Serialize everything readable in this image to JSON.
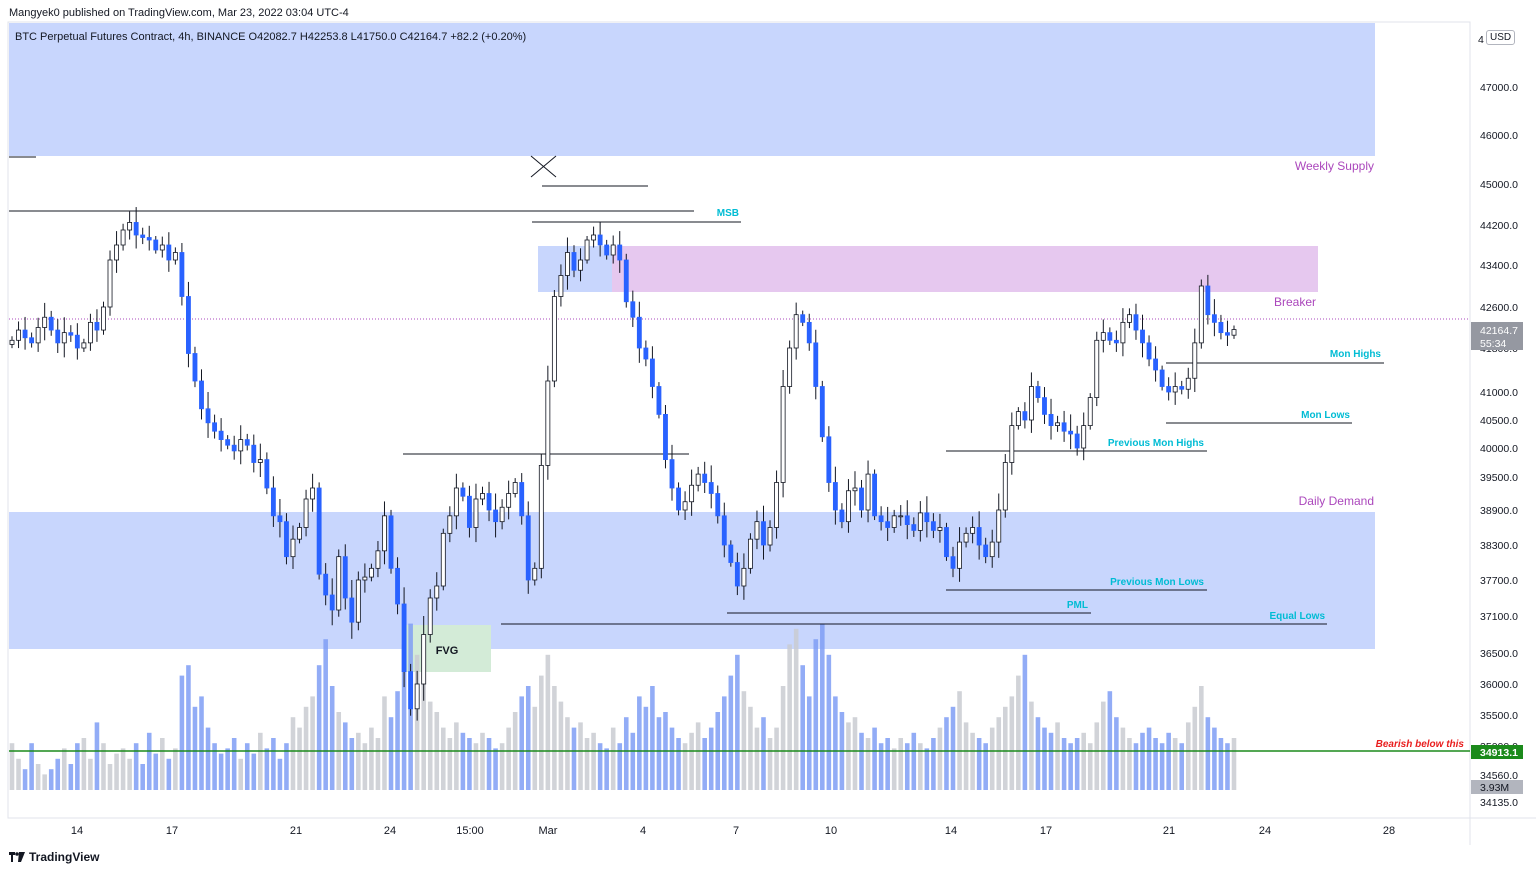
{
  "header": {
    "published": "Mangyek0 published on TradingView.com, Mar 23, 2022 03:04 UTC-4",
    "symbol_info": "BTC Perpetual Futures Contract, 4h, BINANCE  O42082.7  H42253.8  L41750.0  C42164.7  +82.2 (+0.20%)",
    "currency": "USD"
  },
  "footer": {
    "brand": "TradingView"
  },
  "colors": {
    "bull_body": "#ffffff",
    "bear_body": "#2962ff",
    "candle_outline": "#131722",
    "zone_blue": "#c8d6fd",
    "zone_pink": "#e6c8ef",
    "zone_green": "#d3ebd7",
    "label_cyan": "#00bcd4",
    "label_purple": "#ab47bc",
    "bearish_red": "#e91e1e",
    "green_line": "#1b8a1b",
    "volume_blue": "#7f9ef5",
    "volume_gray": "#c9cbd1"
  },
  "chart_data": {
    "type": "candlestick",
    "timeframe": "4h",
    "x_ticks": [
      "14",
      "17",
      "21",
      "24",
      "15:00",
      "Mar",
      "4",
      "7",
      "10",
      "14",
      "17",
      "21",
      "24",
      "28"
    ],
    "y_ticks": [
      47000,
      46000,
      45000,
      44200,
      43400,
      42600,
      41800,
      41000,
      40500,
      40000,
      39500,
      38900,
      38300,
      37700,
      37100,
      36500,
      36000,
      35500,
      35000,
      34560,
      34135
    ],
    "y_tick_labels": [
      "47000.0",
      "46000.0",
      "45000.0",
      "44200.0",
      "43400.0",
      "42600.0",
      "41800.0",
      "41000.0",
      "40500.0",
      "40000.0",
      "39500.0",
      "38900.0",
      "38300.0",
      "37700.0",
      "37100.0",
      "36500.0",
      "36000.0",
      "35500.0",
      "35000.0",
      "34560.0",
      "34135.0"
    ],
    "top_partial_label": "4",
    "price_markers": {
      "last_price": "42164.7",
      "countdown": "55:34",
      "bearish_level": "34913.1",
      "volume": "3.93M"
    },
    "ohlc": {
      "open": 42082.7,
      "high": 42253.8,
      "low": 41750.0,
      "close": 42164.7,
      "change": 82.2,
      "change_pct": 0.2
    },
    "zones": [
      {
        "name": "Weekly Supply",
        "from": 45600,
        "to": 48300
      },
      {
        "name": "Daily Demand",
        "from": 36600,
        "to": 38900
      },
      {
        "name": "Breaker",
        "from": 42900,
        "to": 43700
      },
      {
        "name": "FVG",
        "from": 36200,
        "to": 36950
      }
    ],
    "annotations": {
      "weekly_supply": "Weekly Supply",
      "daily_demand": "Daily Demand",
      "breaker": "Breaker",
      "msb": "MSB",
      "mon_highs": "Mon Highs",
      "mon_lows": "Mon Lows",
      "previous_mon_highs": "Previous Mon Highs",
      "previous_mon_lows": "Previous  Mon Lows",
      "pml": "PML",
      "equal_lows": "Equal Lows",
      "fvg": "FVG",
      "bearish": "Bearish below this"
    },
    "levels": {
      "mon_highs": 41550,
      "mon_lows": 40490,
      "previous_mon_highs": 39950,
      "previous_mon_lows": 37510,
      "pml": 37190,
      "equal_lows": 36980,
      "msb": 44100,
      "bearish": 34913.1,
      "current": 42164.7
    },
    "closes": [
      41950,
      42150,
      42000,
      41900,
      42200,
      42400,
      42150,
      41900,
      42100,
      42050,
      41800,
      41900,
      42300,
      42150,
      42600,
      43500,
      43800,
      44100,
      44250,
      44000,
      43950,
      43900,
      43700,
      43800,
      43500,
      43650,
      42800,
      41700,
      41200,
      40700,
      40450,
      40300,
      40150,
      40050,
      39950,
      40150,
      40050,
      39750,
      39800,
      39300,
      38800,
      38700,
      38100,
      38400,
      38600,
      39100,
      39300,
      37800,
      37450,
      37200,
      38100,
      37400,
      37000,
      37700,
      37750,
      37900,
      38200,
      38800,
      37900,
      37300,
      36200,
      35600,
      36000,
      36800,
      37400,
      37600,
      38500,
      38800,
      39300,
      39150,
      38600,
      39100,
      39200,
      38900,
      38700,
      38950,
      39200,
      39400,
      38800,
      37700,
      37900,
      39700,
      41200,
      42800,
      43200,
      43650,
      43300,
      43500,
      43900,
      44000,
      43800,
      43600,
      43800,
      43500,
      42700,
      42400,
      41800,
      41600,
      41100,
      40600,
      39800,
      39300,
      38900,
      39050,
      39350,
      39550,
      39400,
      39200,
      38800,
      38300,
      38000,
      37600,
      37900,
      38400,
      38700,
      38300,
      38600,
      39400,
      41100,
      41800,
      42450,
      42300,
      41900,
      41100,
      40200,
      39400,
      38900,
      38700,
      39250,
      39300,
      38900,
      39550,
      38800,
      38700,
      38600,
      38800,
      38800,
      38650,
      38550,
      38850,
      38700,
      38550,
      38600,
      38100,
      37900,
      38350,
      38500,
      38600,
      38300,
      38100,
      38350,
      38900,
      39750,
      40400,
      40650,
      40500,
      41100,
      40900,
      40600,
      40400,
      40450,
      40300,
      40250,
      40000,
      40400,
      40900,
      41950,
      42100,
      41950,
      41900,
      42300,
      42450,
      42150,
      41900,
      41600,
      41400,
      41100,
      41000,
      41100,
      41050,
      41250,
      41900,
      43000,
      42450,
      42300,
      42100,
      42050,
      42160
    ],
    "volumes": [
      0.9,
      0.6,
      0.4,
      0.9,
      0.5,
      0.3,
      0.4,
      0.6,
      0.8,
      0.5,
      0.9,
      1.0,
      0.6,
      1.3,
      0.9,
      0.5,
      0.7,
      0.8,
      0.6,
      0.9,
      0.5,
      1.1,
      0.7,
      1.0,
      0.6,
      0.8,
      2.2,
      2.4,
      1.6,
      1.8,
      1.2,
      0.9,
      0.7,
      0.8,
      1.0,
      0.6,
      0.9,
      0.7,
      1.1,
      0.8,
      1.0,
      0.6,
      0.9,
      1.4,
      1.2,
      1.6,
      1.8,
      2.4,
      2.9,
      2.0,
      1.5,
      1.3,
      1.0,
      1.1,
      0.9,
      1.2,
      1.0,
      1.8,
      1.4,
      1.9,
      2.8,
      3.2,
      2.6,
      2.1,
      1.7,
      1.5,
      1.2,
      1.0,
      1.3,
      1.1,
      1.0,
      0.9,
      1.1,
      1.0,
      0.8,
      0.9,
      1.2,
      1.5,
      1.8,
      2.0,
      1.6,
      2.2,
      2.6,
      2.0,
      1.7,
      1.4,
      1.2,
      1.3,
      1.0,
      1.1,
      0.9,
      0.8,
      1.2,
      0.9,
      1.4,
      1.1,
      1.8,
      1.6,
      2.0,
      1.4,
      1.5,
      1.2,
      1.0,
      0.9,
      1.1,
      1.3,
      1.0,
      1.2,
      1.5,
      1.8,
      2.2,
      2.6,
      1.9,
      1.6,
      1.2,
      1.4,
      1.0,
      1.2,
      2.0,
      2.8,
      3.1,
      2.4,
      1.8,
      2.9,
      3.2,
      2.6,
      1.8,
      1.5,
      1.3,
      1.4,
      1.1,
      1.0,
      1.2,
      0.9,
      1.0,
      0.8,
      1.0,
      0.9,
      1.1,
      0.9,
      0.8,
      1.0,
      1.2,
      1.4,
      1.6,
      1.9,
      1.3,
      1.1,
      1.0,
      0.9,
      1.2,
      1.4,
      1.6,
      1.8,
      2.2,
      2.6,
      1.7,
      1.4,
      1.2,
      1.1,
      1.3,
      1.0,
      0.9,
      1.0,
      1.1,
      0.9,
      1.3,
      1.7,
      1.9,
      1.4,
      1.2,
      1.0,
      0.9,
      1.1,
      1.2,
      1.0,
      0.9,
      1.1,
      1.0,
      0.9,
      1.3,
      1.6,
      2.0,
      1.4,
      1.2,
      1.0,
      0.9,
      1.0
    ],
    "y_range": [
      33900,
      48400
    ]
  }
}
